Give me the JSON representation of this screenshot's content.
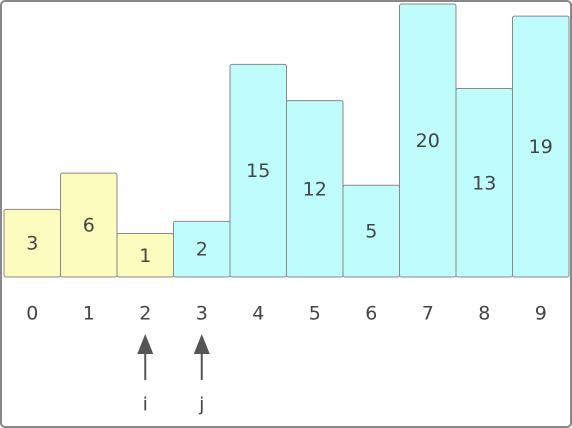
{
  "chart_data": {
    "type": "bar",
    "categories": [
      "0",
      "1",
      "2",
      "3",
      "4",
      "5",
      "6",
      "7",
      "8",
      "9"
    ],
    "values": [
      3,
      6,
      1,
      2,
      15,
      12,
      5,
      20,
      13,
      19
    ],
    "colors": [
      "#fcfcbe",
      "#fcfcbe",
      "#fcfcbe",
      "#bffcfc",
      "#bffcfc",
      "#bffcfc",
      "#bffcfc",
      "#bffcfc",
      "#bffcfc",
      "#bffcfc"
    ],
    "pointer_labels": [
      null,
      null,
      "i",
      "j",
      null,
      null,
      null,
      null,
      null,
      null
    ],
    "ylim": [
      -2.6,
      20
    ]
  }
}
